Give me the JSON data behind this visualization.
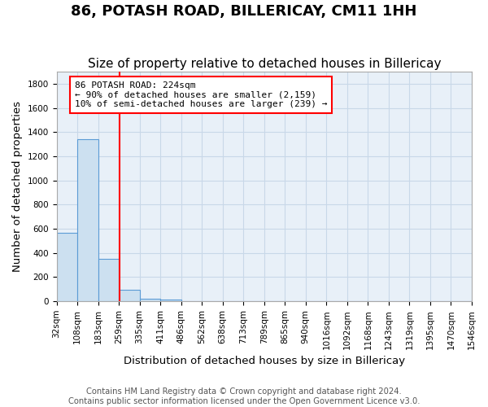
{
  "title": "86, POTASH ROAD, BILLERICAY, CM11 1HH",
  "subtitle": "Size of property relative to detached houses in Billericay",
  "xlabel": "Distribution of detached houses by size in Billericay",
  "ylabel": "Number of detached properties",
  "bin_labels": [
    "32sqm",
    "108sqm",
    "183sqm",
    "259sqm",
    "335sqm",
    "411sqm",
    "486sqm",
    "562sqm",
    "638sqm",
    "713sqm",
    "789sqm",
    "865sqm",
    "940sqm",
    "1016sqm",
    "1092sqm",
    "1168sqm",
    "1243sqm",
    "1319sqm",
    "1395sqm",
    "1470sqm",
    "1546sqm"
  ],
  "bar_heights": [
    570,
    1340,
    350,
    95,
    20,
    15,
    0,
    0,
    0,
    0,
    0,
    0,
    0,
    0,
    0,
    0,
    0,
    0,
    0,
    0
  ],
  "bar_color": "#cce0f0",
  "bar_edge_color": "#5b9bd5",
  "red_line_x": 2.55,
  "annotation_text": "86 POTASH ROAD: 224sqm\n← 90% of detached houses are smaller (2,159)\n10% of semi-detached houses are larger (239) →",
  "ylim": [
    0,
    1900
  ],
  "yticks": [
    0,
    200,
    400,
    600,
    800,
    1000,
    1200,
    1400,
    1600,
    1800
  ],
  "footer_line1": "Contains HM Land Registry data © Crown copyright and database right 2024.",
  "footer_line2": "Contains public sector information licensed under the Open Government Licence v3.0.",
  "bg_color": "#ffffff",
  "ax_bg_color": "#e8f0f8",
  "grid_color": "#c8d8e8",
  "title_fontsize": 13,
  "subtitle_fontsize": 11,
  "axis_label_fontsize": 9.5,
  "tick_fontsize": 7.5,
  "footer_fontsize": 7.2
}
